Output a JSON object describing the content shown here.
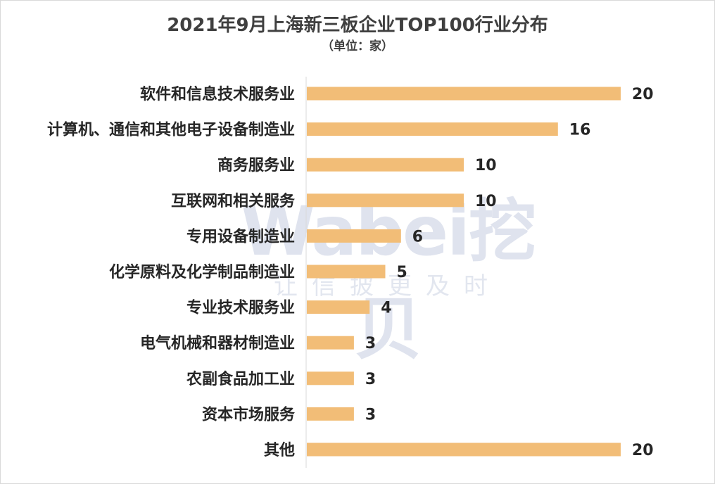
{
  "chart_data": {
    "type": "bar",
    "orientation": "horizontal",
    "title": "2021年9月上海新三板企业TOP100行业分布",
    "subtitle": "（单位：家）",
    "categories": [
      "软件和信息技术服务业",
      "计算机、通信和其他电子设备制造业",
      "商务服务业",
      "互联网和相关服务",
      "专用设备制造业",
      "化学原料及化学制品制造业",
      "专业技术服务业",
      "电气机械和器材制造业",
      "农副食品加工业",
      "资本市场服务",
      "其他"
    ],
    "values": [
      20,
      16,
      10,
      10,
      6,
      5,
      4,
      3,
      3,
      3,
      20
    ],
    "xlim": [
      0,
      20
    ],
    "grid": false,
    "legend": "none",
    "bar_color": "#F2BD77",
    "axis_color": "#d9d9d9"
  },
  "watermark": {
    "logo": "Wabei挖贝",
    "slogan": "让信披更及时"
  }
}
